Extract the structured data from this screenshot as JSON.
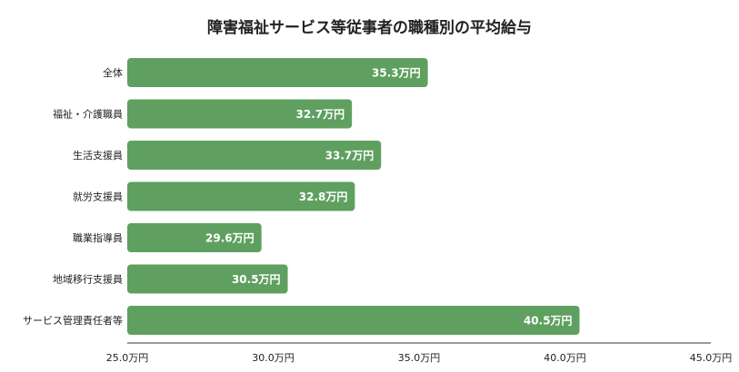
{
  "chart_data": {
    "type": "bar",
    "orientation": "horizontal",
    "title": "障害福祉サービス等従事者の職種別の平均給与",
    "categories": [
      "全体",
      "福祉・介護職員",
      "生活支援員",
      "就労支援員",
      "職業指導員",
      "地域移行支援員",
      "サービス管理責任者等"
    ],
    "values": [
      35.3,
      32.7,
      33.7,
      32.8,
      29.6,
      30.5,
      40.5
    ],
    "value_labels": [
      "35.3万円",
      "32.7万円",
      "33.7万円",
      "32.8万円",
      "29.6万円",
      "30.5万円",
      "40.5万円"
    ],
    "xlim": [
      25.0,
      45.0
    ],
    "ticks": [
      25.0,
      30.0,
      35.0,
      40.0,
      45.0
    ],
    "tick_labels": [
      "25.0万円",
      "30.0万円",
      "35.0万円",
      "40.0万円",
      "45.0万円"
    ],
    "grid": false,
    "bar_color": "#5fa060"
  }
}
